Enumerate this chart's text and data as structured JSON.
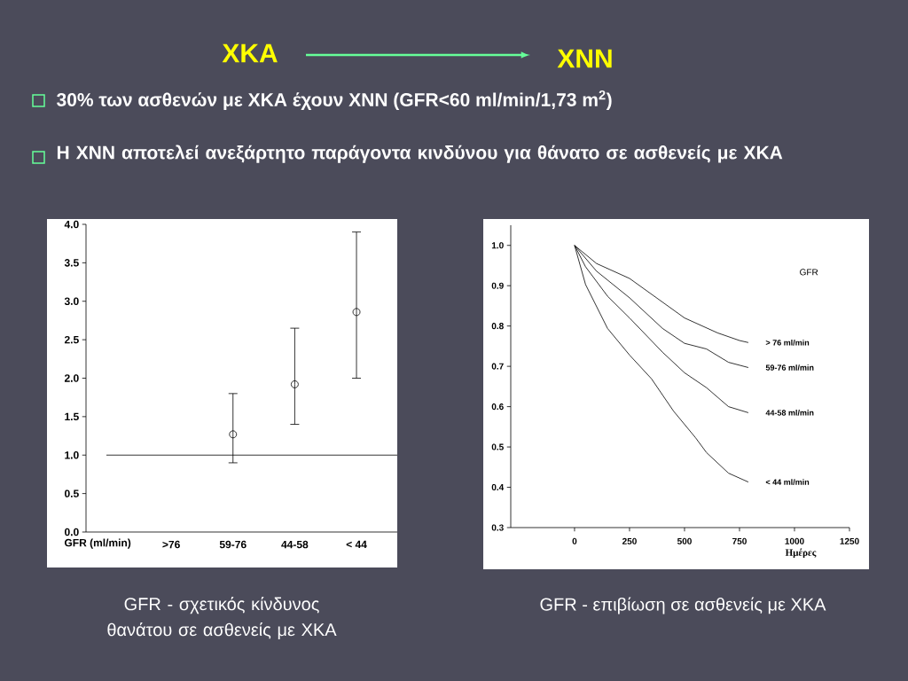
{
  "chart_data": [
    {
      "type": "scatter",
      "categories": [
        ">76",
        "59-76",
        "44-58",
        "< 44"
      ],
      "xlabel": "GFR  (ml/min)",
      "values": [
        null,
        1.27,
        1.92,
        2.86
      ],
      "errors": [
        null,
        [
          0.9,
          1.8
        ],
        [
          1.4,
          2.65
        ],
        [
          2.0,
          3.9
        ]
      ],
      "color": "#000000",
      "marker": "circle",
      "ylim": [
        0,
        4
      ],
      "yticks": [
        {
          "value": 0,
          "label": "0.0"
        },
        {
          "value": 0.5,
          "label": "0.5"
        },
        {
          "value": 1,
          "label": "1.0"
        },
        {
          "value": 1.5,
          "label": "1.5"
        },
        {
          "value": 2,
          "label": "2.0"
        },
        {
          "value": 2.5,
          "label": "2.5"
        },
        {
          "value": 3,
          "label": "3.0"
        },
        {
          "value": 3.5,
          "label": "3.5"
        },
        {
          "value": 4,
          "label": "4.0"
        }
      ],
      "ref_lines": [
        {
          "axis": "y",
          "value": 1
        }
      ],
      "annotations": [
        "ΧΚΑ",
        "ΧΝΝ",
        "30% των ασθενών με ΧΚΑ έχουν ΧΝΝ (GFR<60 ml/min/1,73 m$^{2}$)",
        "Η ΧΝΝ αποτελεί ανεξάρτητο παράγοντα κινδύνου για θάνατο σε ασθενείς με ΧΚΑ",
        "GFR - σχετικός κίνδυνος θανάτου σε ασθενείς με ΧΚΑ"
      ]
    },
    {
      "type": "line",
      "xlabel": "Ημέρες",
      "line_style": "solid",
      "xlim": [
        -290,
        1250
      ],
      "ylim": [
        0.3,
        1.05
      ],
      "xticks": [
        0,
        250,
        500,
        750,
        1000,
        1250
      ],
      "yticks": [
        0.3,
        0.4,
        0.5,
        0.6,
        0.7,
        0.8,
        0.9,
        {
          "value": 1,
          "label": "1.0"
        }
      ],
      "annotations": [
        "GFR",
        "GFR - επιβίωση σε ασθενείς με ΧΚΑ"
      ],
      "series": [
        {
          "name": "> 76 ml/min",
          "color": "#000000",
          "x": [
            0,
            100,
            250,
            500,
            650,
            750,
            790
          ],
          "values": [
            1.0,
            0.955,
            0.918,
            0.82,
            0.783,
            0.764,
            0.759
          ]
        },
        {
          "name": "59-76 ml/min",
          "color": "#000000",
          "x": [
            0,
            100,
            250,
            400,
            500,
            600,
            700,
            790
          ],
          "values": [
            1.0,
            0.936,
            0.87,
            0.794,
            0.757,
            0.743,
            0.71,
            0.697
          ]
        },
        {
          "name": "44-58 ml/min",
          "color": "#000000",
          "x": [
            0,
            50,
            150,
            250,
            400,
            500,
            600,
            700,
            790
          ],
          "values": [
            1.0,
            0.947,
            0.874,
            0.82,
            0.735,
            0.684,
            0.647,
            0.6,
            0.585
          ]
        },
        {
          "name": "< 44 ml/min",
          "color": "#000000",
          "x": [
            0,
            50,
            150,
            250,
            350,
            450,
            550,
            600,
            700,
            790
          ],
          "values": [
            1.0,
            0.903,
            0.794,
            0.728,
            0.669,
            0.589,
            0.523,
            0.486,
            0.435,
            0.413
          ]
        }
      ]
    }
  ]
}
